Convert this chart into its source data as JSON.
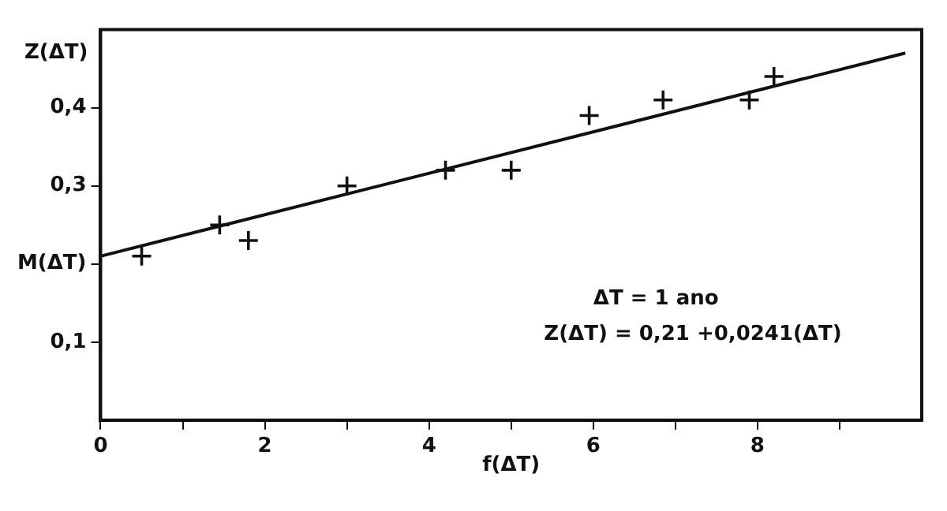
{
  "chart_data": {
    "type": "scatter",
    "xlabel": "f(ΔT)",
    "ylabel": "Z(ΔT)",
    "xlim": [
      0,
      10
    ],
    "ylim": [
      0,
      0.5
    ],
    "xticks": [
      0,
      {
        "value": 1,
        "label": null
      },
      2,
      {
        "value": 3,
        "label": null
      },
      4,
      {
        "value": 5,
        "label": null
      },
      6,
      {
        "value": 7,
        "label": null
      },
      8,
      {
        "value": 9,
        "label": null
      }
    ],
    "yticks": [
      {
        "value": 0.1,
        "label": "0,1"
      },
      {
        "value": 0.2,
        "label": "M(ΔT)"
      },
      {
        "value": 0.3,
        "label": "0,3"
      },
      {
        "value": 0.4,
        "label": "0,4"
      }
    ],
    "grid": false,
    "legend": false,
    "marker": "cross",
    "series": [
      {
        "type": "scatter",
        "color": "#111111",
        "x": [
          0.5,
          1.45,
          1.8,
          3.0,
          4.2,
          5.0,
          5.95,
          6.85,
          7.9,
          8.2
        ],
        "values": [
          0.21,
          0.25,
          0.23,
          0.3,
          0.32,
          0.32,
          0.39,
          0.41,
          0.41,
          0.44
        ]
      },
      {
        "type": "line",
        "color": "#111111",
        "marker": "none",
        "line_style": "solid",
        "x": [
          0,
          9.8
        ],
        "values": [
          0.21,
          0.47
        ]
      }
    ],
    "annotations": [
      "ΔT = 1 ano",
      "Z(ΔT) = 0,21 +0,0241(ΔT)"
    ]
  }
}
